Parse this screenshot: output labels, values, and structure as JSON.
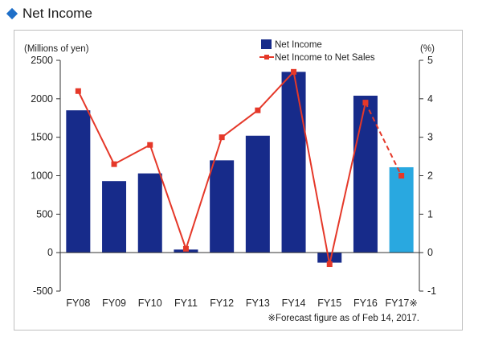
{
  "heading": {
    "title": "Net Income"
  },
  "colors": {
    "bar": "#172b8a",
    "bar_forecast": "#29a8e0",
    "line": "#e53829",
    "heading_marker": "#1f6fc8"
  },
  "chart_data": {
    "type": "bar+line",
    "categories": [
      "FY08",
      "FY09",
      "FY10",
      "FY11",
      "FY12",
      "FY13",
      "FY14",
      "FY15",
      "FY16",
      "FY17※"
    ],
    "series": [
      {
        "name": "Net Income",
        "type": "bar",
        "axis": "left",
        "values": [
          1850,
          930,
          1030,
          40,
          1200,
          1520,
          2350,
          -130,
          2040,
          1110
        ],
        "forecast_index": 9
      },
      {
        "name": "Net Income to Net Sales",
        "type": "line",
        "axis": "right",
        "values": [
          4.2,
          2.3,
          2.8,
          0.1,
          3.0,
          3.7,
          4.7,
          -0.3,
          3.9,
          2.0
        ],
        "forecast_index": 9
      }
    ],
    "left_axis": {
      "label": "(Millions of yen)",
      "ylim": [
        -500,
        2500
      ],
      "ticks": [
        "2500",
        "2000",
        "1500",
        "1000",
        "500",
        "0",
        "-500"
      ]
    },
    "right_axis": {
      "label": "(%)",
      "ylim": [
        -1,
        5
      ],
      "ticks": [
        "5",
        "4",
        "3",
        "2",
        "1",
        "0",
        "-1"
      ]
    },
    "footnote": "※Forecast figure as of Feb 14, 2017.",
    "legend_position": "top-right"
  }
}
